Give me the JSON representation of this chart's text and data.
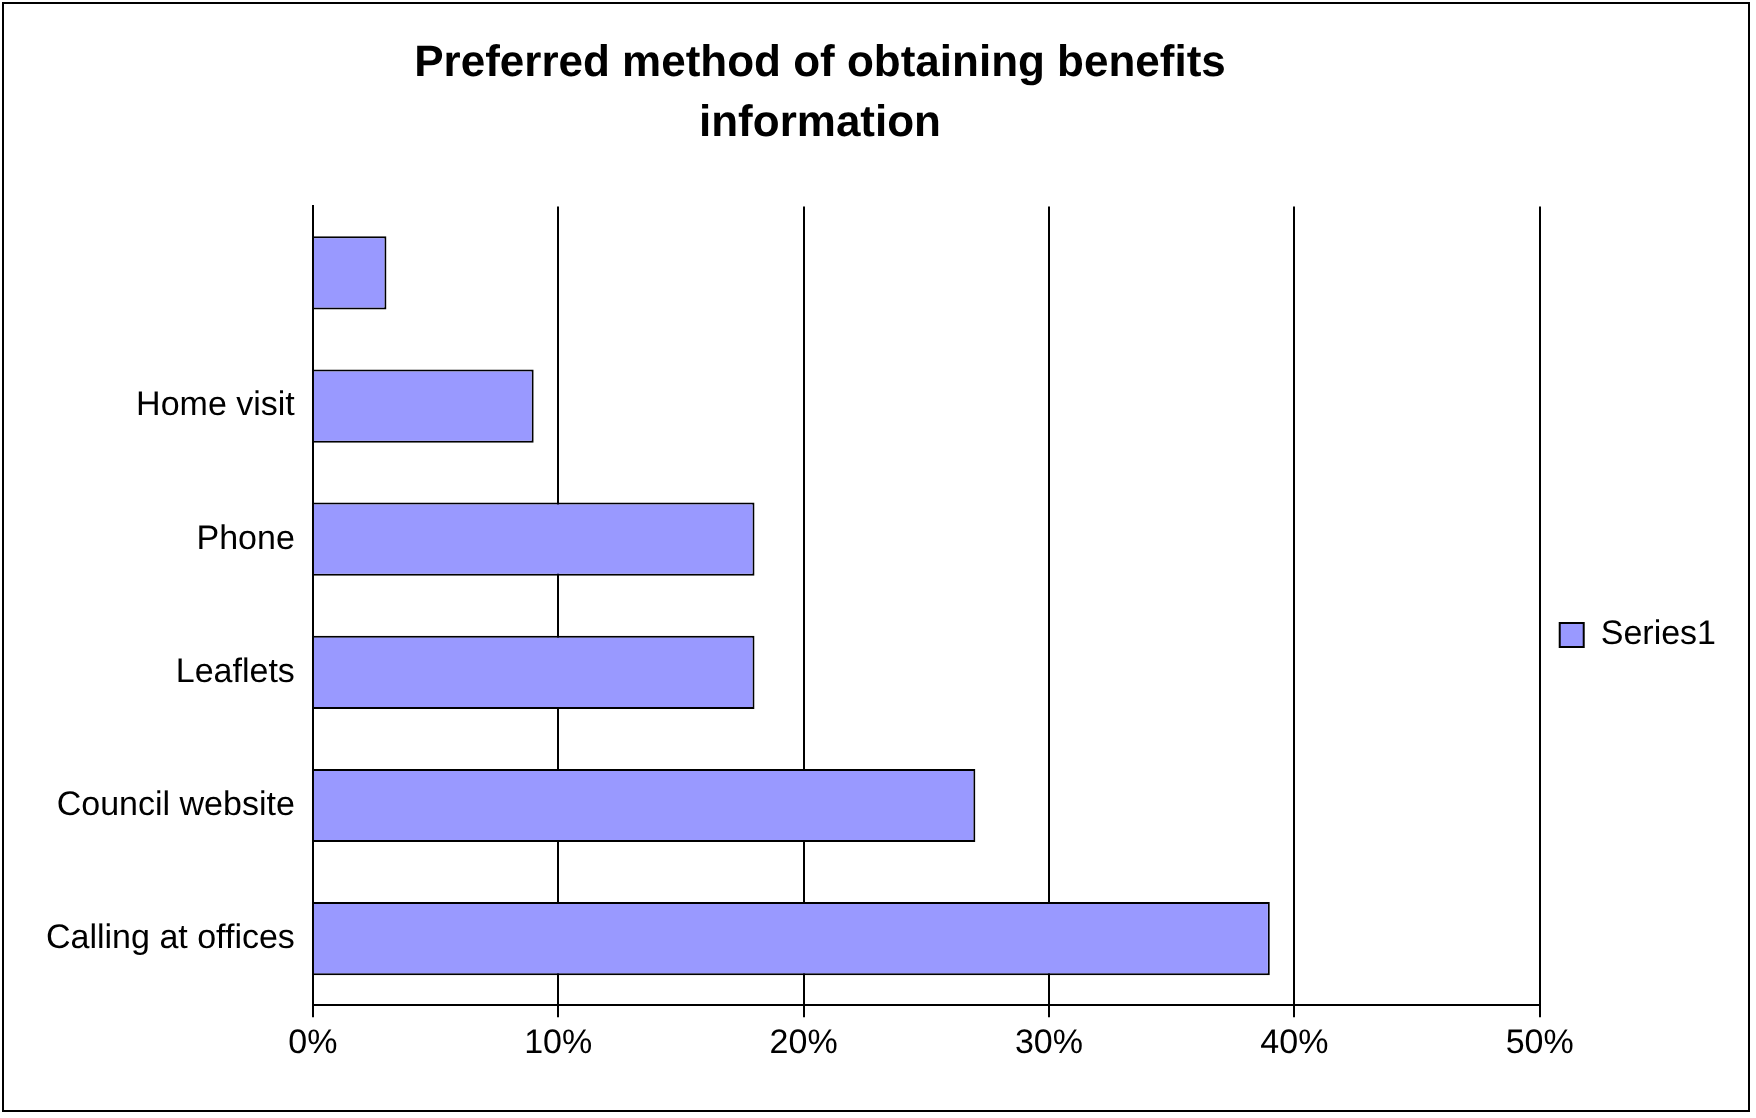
{
  "chart_data": {
    "type": "bar",
    "orientation": "horizontal",
    "title": "Preferred method of obtaining benefits information",
    "categories": [
      null,
      "Home visit",
      "Phone",
      "Leaflets",
      "Council website",
      "Calling at offices"
    ],
    "series": [
      {
        "name": "Series1",
        "color": "#9999ff",
        "values": [
          3,
          9,
          18,
          18,
          27,
          39
        ]
      }
    ],
    "xlim": [
      0,
      50
    ],
    "xticks": [
      {
        "value": 0,
        "label": "0%"
      },
      {
        "value": 10,
        "label": "10%"
      },
      {
        "value": 20,
        "label": "20%"
      },
      {
        "value": 30,
        "label": "30%"
      },
      {
        "value": 40,
        "label": "40%"
      },
      {
        "value": 50,
        "label": "50%"
      }
    ],
    "grid": "x",
    "legend": "right"
  }
}
